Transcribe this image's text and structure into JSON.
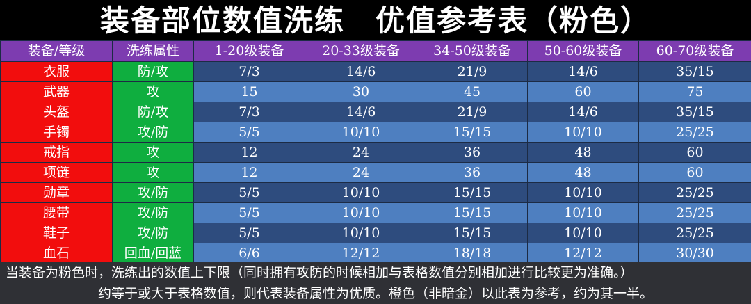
{
  "title": "装备部位数值洗练　优值参考表（粉色）",
  "headers": [
    "装备/等级",
    "洗练属性",
    "1-20级装备",
    "20-33级装备",
    "34-50级装备",
    "50-60级装备",
    "60-70级装备"
  ],
  "rows": [
    {
      "equip": "衣服",
      "attr": "防/攻",
      "v1": "7/3",
      "v2": "14/6",
      "v3": "21/9",
      "v4": "14/6",
      "v5": "35/15"
    },
    {
      "equip": "武器",
      "attr": "攻",
      "v1": "15",
      "v2": "30",
      "v3": "45",
      "v4": "60",
      "v5": "75"
    },
    {
      "equip": "头盔",
      "attr": "防/攻",
      "v1": "7/3",
      "v2": "14/6",
      "v3": "21/9",
      "v4": "14/6",
      "v5": "35/15"
    },
    {
      "equip": "手镯",
      "attr": "攻/防",
      "v1": "5/5",
      "v2": "10/10",
      "v3": "15/15",
      "v4": "10/10",
      "v5": "25/25"
    },
    {
      "equip": "戒指",
      "attr": "攻",
      "v1": "12",
      "v2": "24",
      "v3": "36",
      "v4": "48",
      "v5": "60"
    },
    {
      "equip": "项链",
      "attr": "攻",
      "v1": "12",
      "v2": "24",
      "v3": "36",
      "v4": "48",
      "v5": "60"
    },
    {
      "equip": "勋章",
      "attr": "攻/防",
      "v1": "5/5",
      "v2": "10/10",
      "v3": "15/15",
      "v4": "10/10",
      "v5": "25/25"
    },
    {
      "equip": "腰带",
      "attr": "攻/防",
      "v1": "5/5",
      "v2": "10/10",
      "v3": "15/15",
      "v4": "10/10",
      "v5": "25/25"
    },
    {
      "equip": "鞋子",
      "attr": "攻/防",
      "v1": "5/5",
      "v2": "10/10",
      "v3": "15/15",
      "v4": "10/10",
      "v5": "25/25"
    },
    {
      "equip": "血石",
      "attr": "回血/回蓝",
      "v1": "6/6",
      "v2": "12/12",
      "v3": "18/18",
      "v4": "12/12",
      "v5": "30/30"
    }
  ],
  "footer": {
    "line1": "当装备为粉色时，洗练出的数值上下限（同时拥有攻防的时候相加与表格数值分别相加进行比较更为准确。）",
    "line2": "约等于或大于表格数值，则代表装备属性为优质。橙色（非暗金）以此表为参考，约为其一半。"
  },
  "colors": {
    "header": "#7d3cb0",
    "equip": "#f20d0d",
    "attr": "#0fae3f",
    "row_dark": "#2e4c7e",
    "row_light": "#4e7fc0",
    "footer": "#2f3035"
  }
}
